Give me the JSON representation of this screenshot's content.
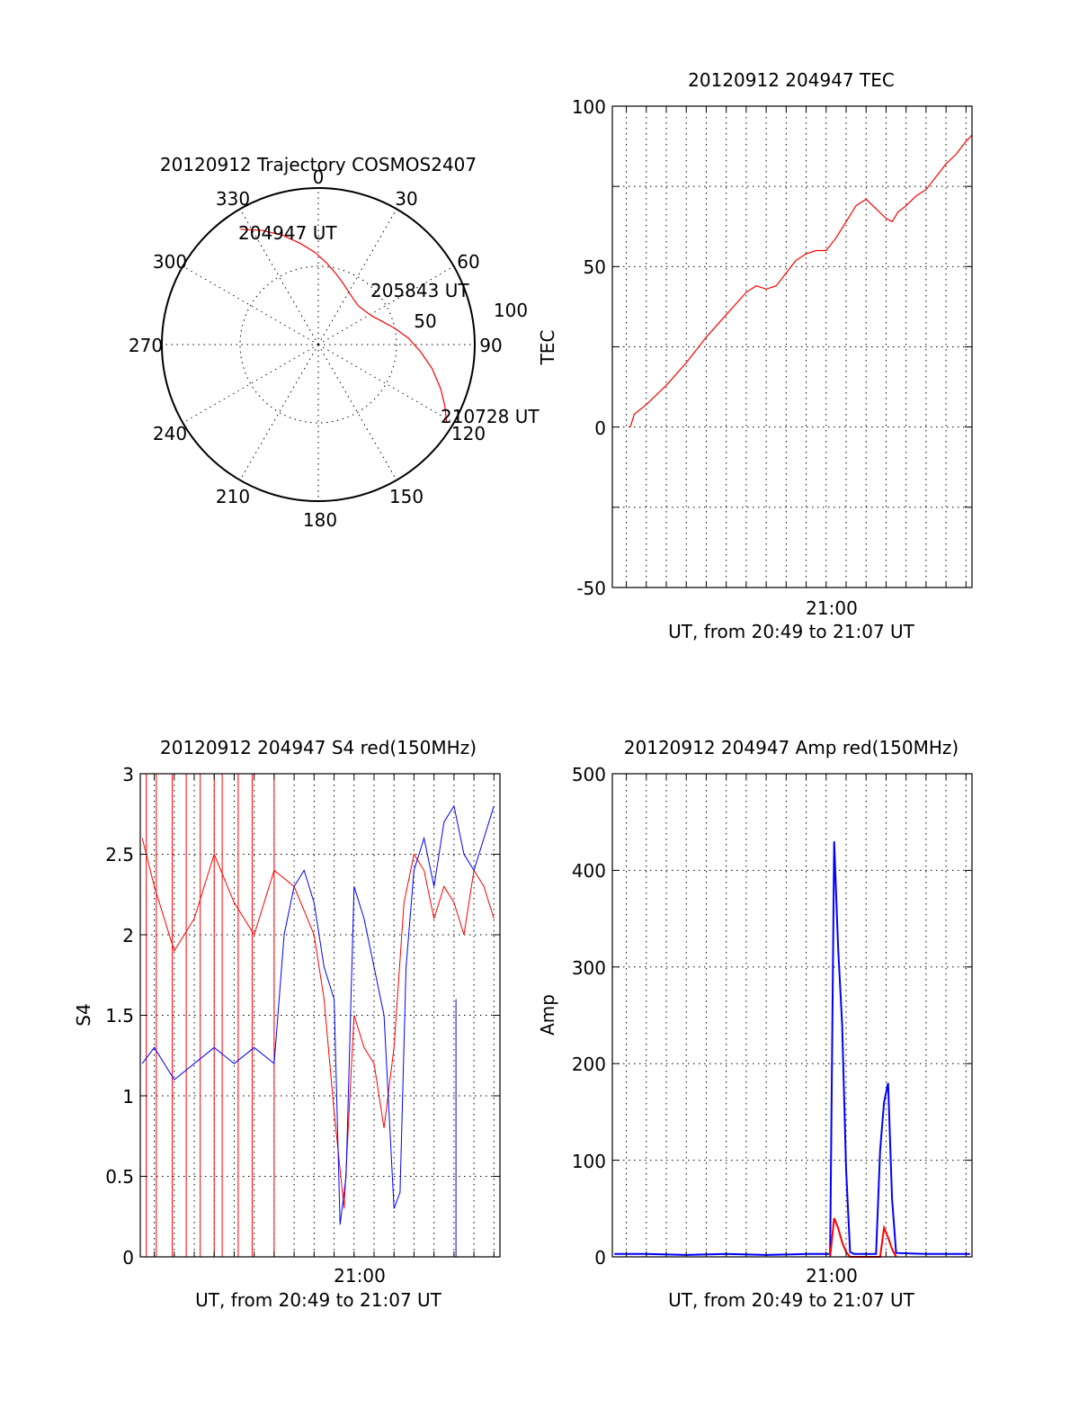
{
  "colors": {
    "primary": "#ff0000",
    "secondary": "#0000ff",
    "axis": "#000000"
  },
  "chart_data": [
    {
      "type": "polar",
      "title": "20120912 Trajectory COSMOS2407",
      "azimuth_labels": [
        "0",
        "30",
        "60",
        "90",
        "120",
        "150",
        "180",
        "210",
        "240",
        "270",
        "300",
        "330"
      ],
      "radial_labels": [
        "50",
        "100"
      ],
      "start_label": "204947 UT",
      "mid_label": "205843 UT",
      "end_label": "210728 UT",
      "trajectory": {
        "azimuth_deg": [
          326,
          334,
          342,
          350,
          358,
          6,
          14,
          22,
          30,
          38,
          46,
          54,
          62,
          70,
          78,
          86,
          94,
          102,
          110,
          116,
          121
        ],
        "elevation_deg": [
          10,
          17,
          24,
          31,
          37,
          43,
          48,
          52,
          55,
          57,
          58,
          57,
          55,
          51,
          45,
          38,
          31,
          23,
          15,
          9,
          4
        ]
      }
    },
    {
      "type": "line",
      "title": "20120912 204947 TEC",
      "ylabel": "TEC",
      "xlabel": "UT, from 20:49 to 21:07 UT",
      "x_tick_labels": [
        "21:00"
      ],
      "y_tick_labels": [
        "100",
        "50",
        "0",
        "-50"
      ],
      "xlim_minutes": [
        20.3,
        38.3
      ],
      "ylim": [
        -50,
        100
      ],
      "series": [
        {
          "color": "#ff0000",
          "x_minutes": [
            21.2,
            21.4,
            22,
            23,
            24,
            25,
            26,
            27,
            27.5,
            28,
            28.5,
            29,
            29.5,
            30,
            30.5,
            31,
            31.5,
            32,
            32.5,
            33,
            33.5,
            34,
            34.3,
            34.6,
            35,
            35.5,
            36,
            36.5,
            37,
            37.5,
            38,
            38.3
          ],
          "values": [
            0,
            4,
            7,
            13,
            20,
            28,
            35,
            42,
            44,
            43,
            44,
            48,
            52,
            54,
            55,
            55,
            59,
            64,
            69,
            71,
            68,
            65,
            64,
            67,
            69,
            72,
            74,
            78,
            82,
            85,
            89,
            91
          ]
        }
      ]
    },
    {
      "type": "line",
      "title": "20120912 204947 S4 red(150MHz)",
      "ylabel": "S4",
      "xlabel": "UT, from 20:49 to 21:07 UT",
      "x_tick_labels": [
        "21:00"
      ],
      "y_tick_labels": [
        "3",
        "2.5",
        "2",
        "1.5",
        "1",
        "0.5",
        "0"
      ],
      "xlim_minutes": [
        20.3,
        38.3
      ],
      "ylim": [
        0,
        3
      ],
      "series": [
        {
          "color": "#ff0000",
          "x_minutes": [
            20.4,
            21,
            22,
            23,
            24,
            25,
            26,
            27,
            28,
            29,
            29.5,
            30,
            30.5,
            31,
            31.5,
            32,
            32.5,
            33,
            33.5,
            34,
            34.5,
            35,
            35.5,
            36,
            36.5,
            37,
            37.5,
            38
          ],
          "values": [
            2.6,
            2.3,
            1.9,
            2.1,
            2.5,
            2.2,
            2.0,
            2.4,
            2.3,
            2.0,
            1.6,
            0.9,
            0.3,
            1.5,
            1.3,
            1.2,
            0.8,
            1.3,
            2.2,
            2.5,
            2.4,
            2.1,
            2.3,
            2.2,
            2.0,
            2.4,
            2.3,
            2.1
          ]
        },
        {
          "color": "#0000ff",
          "x_minutes": [
            20.4,
            21,
            22,
            23,
            24,
            25,
            26,
            27,
            27.5,
            28,
            28.5,
            29,
            29.5,
            30,
            30.3,
            30.6,
            31,
            31.5,
            32,
            32.5,
            33,
            33.3,
            33.6,
            34,
            34.5,
            35,
            35.5,
            36,
            36.5,
            37,
            37.5,
            38
          ],
          "values": [
            1.2,
            1.3,
            1.1,
            1.2,
            1.3,
            1.2,
            1.3,
            1.2,
            2.0,
            2.3,
            2.4,
            2.2,
            1.8,
            1.6,
            0.2,
            0.5,
            2.3,
            2.1,
            1.8,
            1.5,
            0.3,
            0.4,
            1.8,
            2.4,
            2.6,
            2.3,
            2.7,
            2.8,
            2.5,
            2.4,
            2.6,
            2.8
          ]
        }
      ]
    },
    {
      "type": "line",
      "title": "20120912 204947 Amp red(150MHz)",
      "ylabel": "Amp",
      "xlabel": "UT, from 20:49 to 21:07 UT",
      "x_tick_labels": [
        "21:00"
      ],
      "y_tick_labels": [
        "500",
        "400",
        "300",
        "200",
        "100",
        "0"
      ],
      "xlim_minutes": [
        20.3,
        38.3
      ],
      "ylim": [
        0,
        500
      ],
      "series": [
        {
          "color": "#0000ff",
          "x_minutes": [
            20.4,
            22,
            24,
            26,
            28,
            30,
            31.2,
            31.4,
            31.6,
            31.8,
            32.0,
            32.2,
            32.4,
            33.5,
            33.7,
            33.9,
            34.1,
            34.3,
            34.5,
            36,
            38.2
          ],
          "values": [
            3,
            3,
            2,
            3,
            2,
            3,
            3,
            430,
            320,
            240,
            90,
            5,
            3,
            3,
            110,
            160,
            180,
            60,
            4,
            3,
            3
          ]
        },
        {
          "color": "#ff0000",
          "x_minutes": [
            31.2,
            31.4,
            31.6,
            31.8,
            32.0,
            32.2,
            33.7,
            33.9,
            34.1,
            34.3,
            34.5
          ],
          "values": [
            0,
            40,
            30,
            15,
            5,
            0,
            0,
            30,
            20,
            8,
            0
          ]
        }
      ]
    }
  ]
}
